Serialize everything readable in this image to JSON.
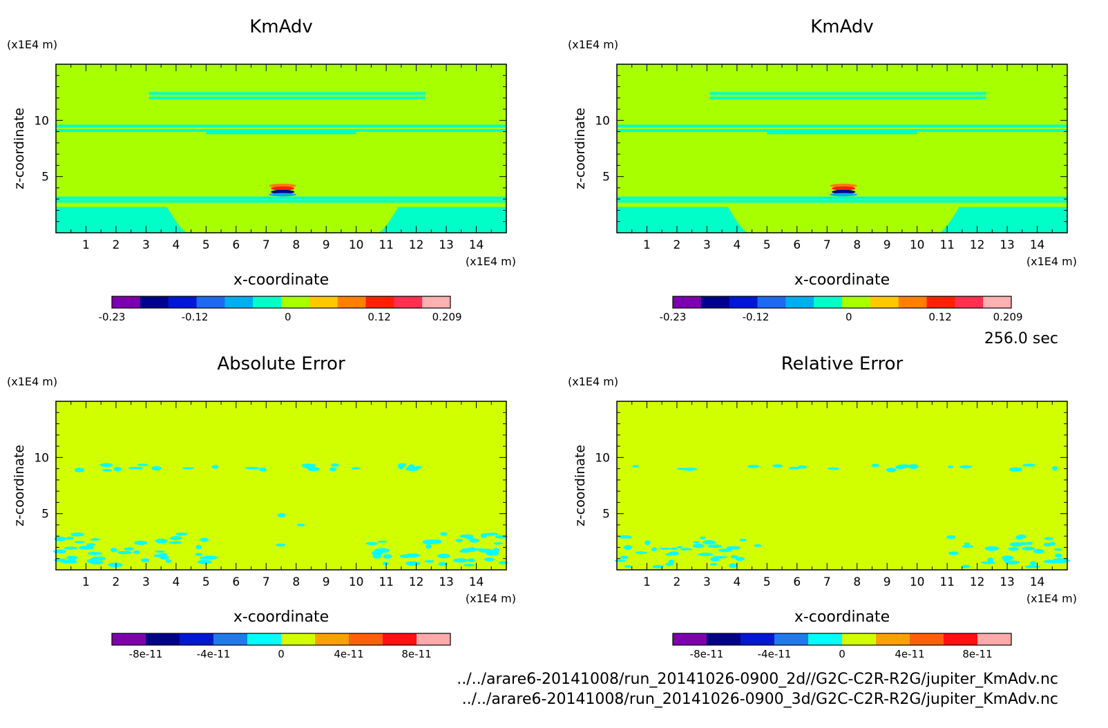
{
  "time_label": "256.0 sec",
  "files": [
    "../../arare6-20141008/run_20141026-0900_2d//G2C-C2R-R2G/jupiter_KmAdv.nc",
    "../../arare6-20141008/run_20141026-0900_3d/G2C-C2R-R2G/jupiter_KmAdv.nc"
  ],
  "chart_data": [
    {
      "type": "heatmap",
      "title": "KmAdv",
      "xlabel": "x-coordinate",
      "ylabel": "z-coordinate",
      "x_unit": "(x1E4 m)",
      "y_unit": "(x1E4 m)",
      "xlim": [
        0,
        15
      ],
      "ylim": [
        0,
        15
      ],
      "x_ticks": [
        "1",
        "2",
        "3",
        "4",
        "5",
        "6",
        "7",
        "8",
        "9",
        "10",
        "11",
        "12",
        "13",
        "14"
      ],
      "y_ticks": [
        "5",
        "10"
      ],
      "colorbar": {
        "colors": [
          "#7d00b0",
          "#00008c",
          "#0018d0",
          "#1f69f0",
          "#00aef0",
          "#00ffc8",
          "#a8ff00",
          "#ffc800",
          "#ff8000",
          "#ff2000",
          "#ff3050",
          "#ffb0b0"
        ],
        "tick_labels": [
          "-0.23",
          "-0.12",
          "0",
          "0.12",
          "0.209"
        ]
      }
    },
    {
      "type": "heatmap",
      "title": "KmAdv",
      "xlabel": "x-coordinate",
      "ylabel": "z-coordinate",
      "x_unit": "(x1E4 m)",
      "y_unit": "(x1E4 m)",
      "xlim": [
        0,
        15
      ],
      "ylim": [
        0,
        15
      ],
      "x_ticks": [
        "1",
        "2",
        "3",
        "4",
        "5",
        "6",
        "7",
        "8",
        "9",
        "10",
        "11",
        "12",
        "13",
        "14"
      ],
      "y_ticks": [
        "5",
        "10"
      ],
      "colorbar": {
        "colors": [
          "#7d00b0",
          "#00008c",
          "#0018d0",
          "#1f69f0",
          "#00aef0",
          "#00ffc8",
          "#a8ff00",
          "#ffc800",
          "#ff8000",
          "#ff2000",
          "#ff3050",
          "#ffb0b0"
        ],
        "tick_labels": [
          "-0.23",
          "-0.12",
          "0",
          "0.12",
          "0.209"
        ]
      }
    },
    {
      "type": "heatmap",
      "title": "Absolute Error",
      "xlabel": "x-coordinate",
      "ylabel": "z-coordinate",
      "x_unit": "(x1E4 m)",
      "y_unit": "(x1E4 m)",
      "xlim": [
        0,
        15
      ],
      "ylim": [
        0,
        15
      ],
      "x_ticks": [
        "1",
        "2",
        "3",
        "4",
        "5",
        "6",
        "7",
        "8",
        "9",
        "10",
        "11",
        "12",
        "13",
        "14"
      ],
      "y_ticks": [
        "5",
        "10"
      ],
      "colorbar": {
        "colors": [
          "#7d00b0",
          "#00008c",
          "#0018d0",
          "#1f7af0",
          "#00ffff",
          "#d2ff00",
          "#ffa000",
          "#ff6000",
          "#ff1010",
          "#ffaaaa"
        ],
        "tick_labels": [
          "-8e-11",
          "-4e-11",
          "0",
          "4e-11",
          "8e-11"
        ]
      }
    },
    {
      "type": "heatmap",
      "title": "Relative Error",
      "xlabel": "x-coordinate",
      "ylabel": "z-coordinate",
      "x_unit": "(x1E4 m)",
      "y_unit": "(x1E4 m)",
      "xlim": [
        0,
        15
      ],
      "ylim": [
        0,
        15
      ],
      "x_ticks": [
        "1",
        "2",
        "3",
        "4",
        "5",
        "6",
        "7",
        "8",
        "9",
        "10",
        "11",
        "12",
        "13",
        "14"
      ],
      "y_ticks": [
        "5",
        "10"
      ],
      "colorbar": {
        "colors": [
          "#7d00b0",
          "#00008c",
          "#0018d0",
          "#1f7af0",
          "#00ffff",
          "#d2ff00",
          "#ffa000",
          "#ff6000",
          "#ff1010",
          "#ffaaaa"
        ],
        "tick_labels": [
          "-8e-11",
          "-4e-11",
          "0",
          "4e-11",
          "8e-11"
        ]
      }
    }
  ]
}
